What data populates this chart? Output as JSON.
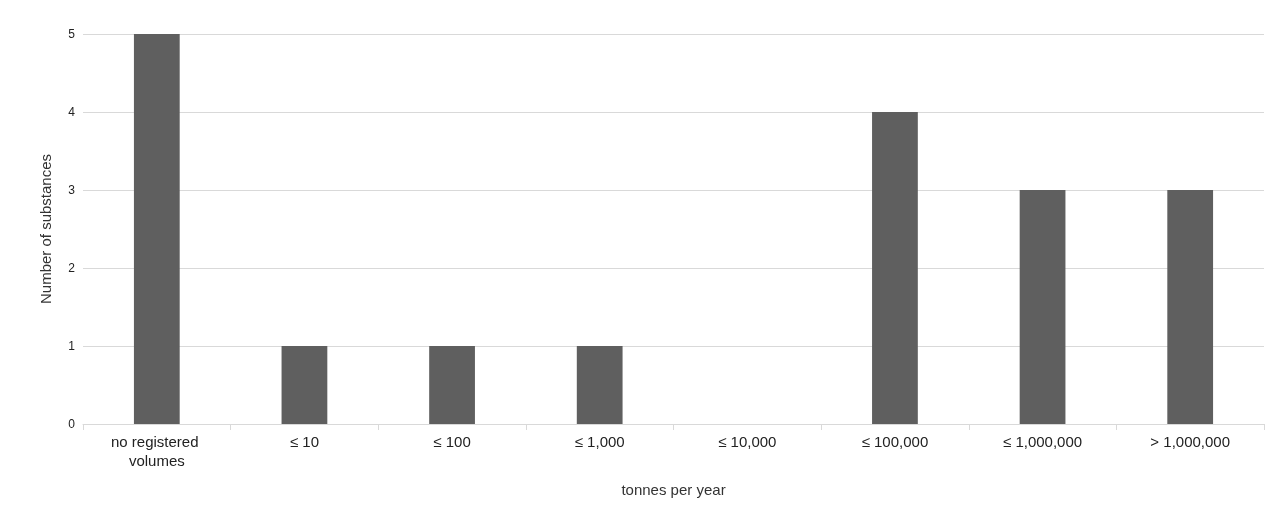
{
  "chart_data": {
    "type": "bar",
    "xlabel": "tonnes per year",
    "ylabel": "Number of substances",
    "categories": [
      "no registered volumes",
      "≤ 10",
      "≤ 100",
      "≤ 1,000",
      "≤ 10,000",
      "≤ 100,000",
      "≤ 1,000,000",
      "> 1,000,000"
    ],
    "values": [
      5,
      1,
      1,
      1,
      0,
      4,
      3,
      3
    ],
    "color": "#5f5f5f",
    "ylim": [
      0,
      5
    ],
    "yticks": [
      0,
      1,
      2,
      3,
      4,
      5
    ],
    "grid": "y"
  }
}
